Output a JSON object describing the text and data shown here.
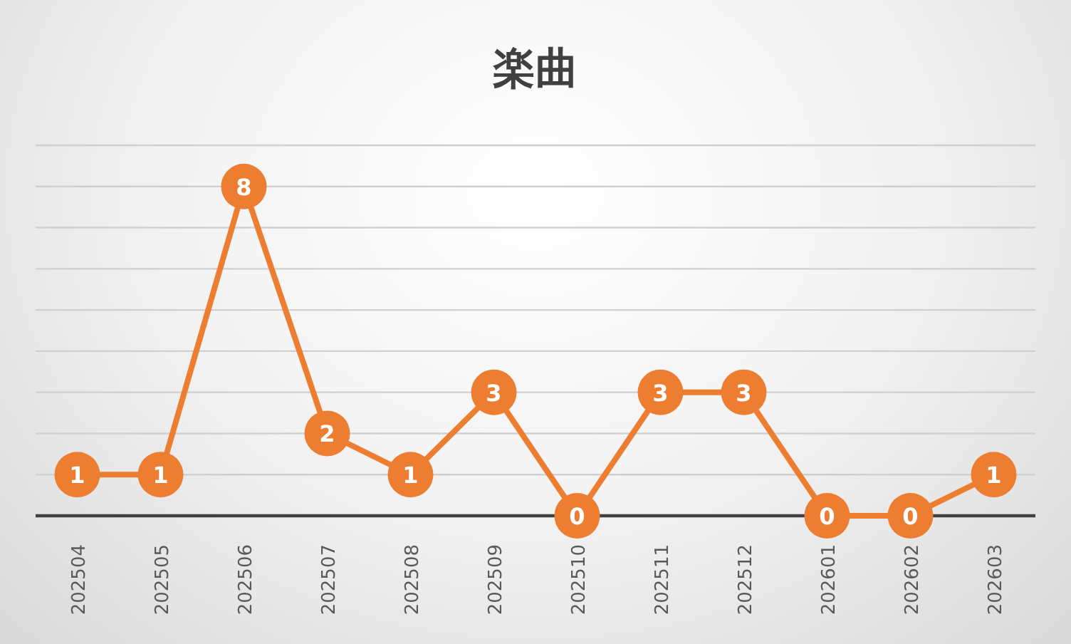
{
  "chart_data": {
    "type": "line",
    "title": "楽曲",
    "categories": [
      "202504",
      "202505",
      "202506",
      "202507",
      "202508",
      "202509",
      "202510",
      "202511",
      "202512",
      "202601",
      "202602",
      "202603"
    ],
    "values": [
      1,
      1,
      8,
      2,
      1,
      3,
      0,
      3,
      3,
      0,
      0,
      1
    ],
    "color": "#ed7d31",
    "ylim": [
      0,
      9
    ],
    "yticks": [
      {
        "value": 0,
        "label": null
      },
      {
        "value": 1,
        "label": null
      },
      {
        "value": 2,
        "label": null
      },
      {
        "value": 3,
        "label": null
      },
      {
        "value": 4,
        "label": null
      },
      {
        "value": 5,
        "label": null
      },
      {
        "value": 6,
        "label": null
      },
      {
        "value": 7,
        "label": null
      },
      {
        "value": 8,
        "label": null
      },
      {
        "value": 9,
        "label": null
      }
    ],
    "grid": "y",
    "tick_labels": "x",
    "data_labels": true,
    "marker": "circle"
  }
}
